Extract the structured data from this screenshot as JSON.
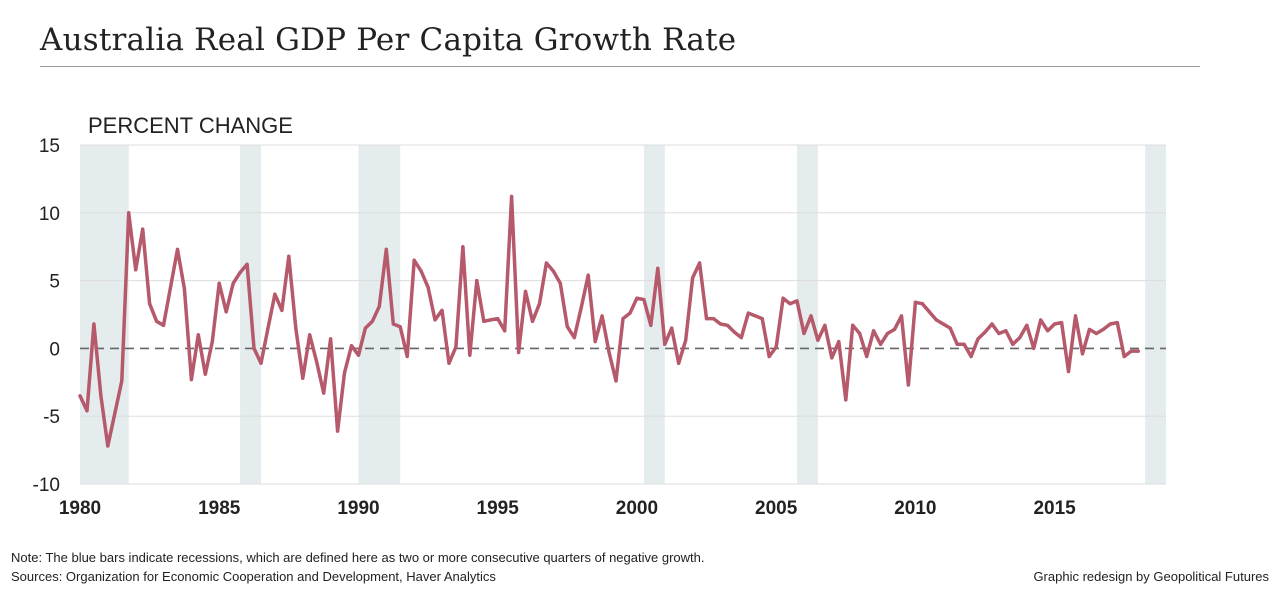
{
  "title": "Australia Real GDP Per Capita Growth Rate",
  "note": "Note: The blue bars indicate recessions, which are defined here as two or more consecutive quarters of negative growth.",
  "sources": "Sources: Organization for Economic Cooperation and Development, Haver Analytics",
  "credit": "Graphic redesign by Geopolitical Futures",
  "colors": {
    "line": "#b5596b",
    "recession": "#e4ecee",
    "zero_line": "#666666",
    "grid": "#dddddd"
  },
  "chart_data": {
    "type": "line",
    "title": "Australia Real GDP Per Capita Growth Rate",
    "ylabel": "PERCENT CHANGE",
    "xlabel": "",
    "ylim": [
      -10,
      15
    ],
    "xlim": [
      1980,
      2019
    ],
    "y_ticks": [
      "15",
      "10",
      "5",
      "0",
      "-5",
      "-10"
    ],
    "x_ticks": [
      "1980",
      "1985",
      "1990",
      "1995",
      "2000",
      "2005",
      "2010",
      "2015"
    ],
    "grid": true,
    "zero_line": "dashed",
    "recessions": [
      [
        1980.0,
        1981.75
      ],
      [
        1985.75,
        1986.5
      ],
      [
        1990.0,
        1991.5
      ],
      [
        2000.25,
        2001.0
      ],
      [
        2005.75,
        2006.5
      ],
      [
        2018.25,
        2019.0
      ]
    ],
    "series": [
      {
        "values": [
          [
            1980.0,
            -3.5
          ],
          [
            1980.25,
            -4.6
          ],
          [
            1980.5,
            1.8
          ],
          [
            1980.75,
            -3.5
          ],
          [
            1981.0,
            -7.2
          ],
          [
            1981.25,
            -4.8
          ],
          [
            1981.5,
            -2.4
          ],
          [
            1981.75,
            10.0
          ],
          [
            1982.0,
            5.8
          ],
          [
            1982.25,
            8.8
          ],
          [
            1982.5,
            3.3
          ],
          [
            1982.75,
            2.0
          ],
          [
            1983.0,
            1.7
          ],
          [
            1983.25,
            4.5
          ],
          [
            1983.5,
            7.3
          ],
          [
            1983.75,
            4.4
          ],
          [
            1984.0,
            -2.3
          ],
          [
            1984.25,
            1.0
          ],
          [
            1984.5,
            -1.9
          ],
          [
            1984.75,
            0.5
          ],
          [
            1985.0,
            4.8
          ],
          [
            1985.25,
            2.7
          ],
          [
            1985.5,
            4.8
          ],
          [
            1985.75,
            5.6
          ],
          [
            1986.0,
            6.2
          ],
          [
            1986.25,
            0.0
          ],
          [
            1986.5,
            -1.1
          ],
          [
            1986.75,
            1.5
          ],
          [
            1987.0,
            4.0
          ],
          [
            1987.25,
            2.8
          ],
          [
            1987.5,
            6.8
          ],
          [
            1987.75,
            1.5
          ],
          [
            1988.0,
            -2.2
          ],
          [
            1988.25,
            1.0
          ],
          [
            1988.5,
            -1.0
          ],
          [
            1988.75,
            -3.3
          ],
          [
            1989.0,
            0.7
          ],
          [
            1989.25,
            -6.1
          ],
          [
            1989.5,
            -1.8
          ],
          [
            1989.75,
            0.2
          ],
          [
            1990.0,
            -0.5
          ],
          [
            1990.25,
            1.5
          ],
          [
            1990.5,
            2.0
          ],
          [
            1990.75,
            3.1
          ],
          [
            1991.0,
            7.3
          ],
          [
            1991.25,
            1.8
          ],
          [
            1991.5,
            1.6
          ],
          [
            1991.75,
            -0.6
          ],
          [
            1992.0,
            6.5
          ],
          [
            1992.25,
            5.7
          ],
          [
            1992.5,
            4.5
          ],
          [
            1992.75,
            2.1
          ],
          [
            1993.0,
            2.8
          ],
          [
            1993.25,
            -1.1
          ],
          [
            1993.5,
            0.1
          ],
          [
            1993.75,
            7.5
          ],
          [
            1994.0,
            -0.5
          ],
          [
            1994.25,
            5.0
          ],
          [
            1994.5,
            2.0
          ],
          [
            1994.75,
            2.1
          ],
          [
            1995.0,
            2.2
          ],
          [
            1995.25,
            1.3
          ],
          [
            1995.5,
            11.2
          ],
          [
            1995.75,
            -0.3
          ],
          [
            1996.0,
            4.2
          ],
          [
            1996.25,
            2.0
          ],
          [
            1996.5,
            3.3
          ],
          [
            1996.75,
            6.3
          ],
          [
            1997.0,
            5.7
          ],
          [
            1997.25,
            4.8
          ],
          [
            1997.5,
            1.6
          ],
          [
            1997.75,
            0.8
          ],
          [
            1998.0,
            3.0
          ],
          [
            1998.25,
            5.4
          ],
          [
            1998.5,
            0.5
          ],
          [
            1998.75,
            2.4
          ],
          [
            1999.0,
            -0.3
          ],
          [
            1999.25,
            -2.4
          ],
          [
            1999.5,
            2.2
          ],
          [
            1999.75,
            2.6
          ],
          [
            2000.0,
            3.7
          ],
          [
            2000.25,
            3.6
          ],
          [
            2000.5,
            1.7
          ],
          [
            2000.75,
            5.9
          ],
          [
            2001.0,
            0.3
          ],
          [
            2001.25,
            1.5
          ],
          [
            2001.5,
            -1.1
          ],
          [
            2001.75,
            0.6
          ],
          [
            2002.0,
            5.2
          ],
          [
            2002.25,
            6.3
          ],
          [
            2002.5,
            2.2
          ],
          [
            2002.75,
            2.2
          ],
          [
            2003.0,
            1.8
          ],
          [
            2003.25,
            1.7
          ],
          [
            2003.5,
            1.2
          ],
          [
            2003.75,
            0.8
          ],
          [
            2004.0,
            2.6
          ],
          [
            2004.25,
            2.4
          ],
          [
            2004.5,
            2.2
          ],
          [
            2004.75,
            -0.6
          ],
          [
            2005.0,
            0.1
          ],
          [
            2005.25,
            3.7
          ],
          [
            2005.5,
            3.3
          ],
          [
            2005.75,
            3.5
          ],
          [
            2006.0,
            1.1
          ],
          [
            2006.25,
            2.4
          ],
          [
            2006.5,
            0.6
          ],
          [
            2006.75,
            1.7
          ],
          [
            2007.0,
            -0.7
          ],
          [
            2007.25,
            0.5
          ],
          [
            2007.5,
            -3.8
          ],
          [
            2007.75,
            1.7
          ],
          [
            2008.0,
            1.1
          ],
          [
            2008.25,
            -0.6
          ],
          [
            2008.5,
            1.3
          ],
          [
            2008.75,
            0.3
          ],
          [
            2009.0,
            1.1
          ],
          [
            2009.25,
            1.4
          ],
          [
            2009.5,
            2.4
          ],
          [
            2009.75,
            -2.7
          ],
          [
            2010.0,
            3.4
          ],
          [
            2010.25,
            3.3
          ],
          [
            2010.5,
            2.7
          ],
          [
            2010.75,
            2.1
          ],
          [
            2011.0,
            1.8
          ],
          [
            2011.25,
            1.5
          ],
          [
            2011.5,
            0.3
          ],
          [
            2011.75,
            0.3
          ],
          [
            2012.0,
            -0.6
          ],
          [
            2012.25,
            0.7
          ],
          [
            2012.5,
            1.2
          ],
          [
            2012.75,
            1.8
          ],
          [
            2013.0,
            1.1
          ],
          [
            2013.25,
            1.3
          ],
          [
            2013.5,
            0.3
          ],
          [
            2013.75,
            0.8
          ],
          [
            2014.0,
            1.7
          ],
          [
            2014.25,
            0.0
          ],
          [
            2014.5,
            2.1
          ],
          [
            2014.75,
            1.3
          ],
          [
            2015.0,
            1.8
          ],
          [
            2015.25,
            1.9
          ],
          [
            2015.5,
            -1.7
          ],
          [
            2015.75,
            2.4
          ],
          [
            2016.0,
            -0.4
          ],
          [
            2016.25,
            1.4
          ],
          [
            2016.5,
            1.1
          ],
          [
            2016.75,
            1.4
          ],
          [
            2017.0,
            1.8
          ],
          [
            2017.25,
            1.9
          ],
          [
            2017.5,
            -0.6
          ],
          [
            2017.75,
            -0.2
          ],
          [
            2018.0,
            -0.2
          ]
        ]
      }
    ]
  }
}
